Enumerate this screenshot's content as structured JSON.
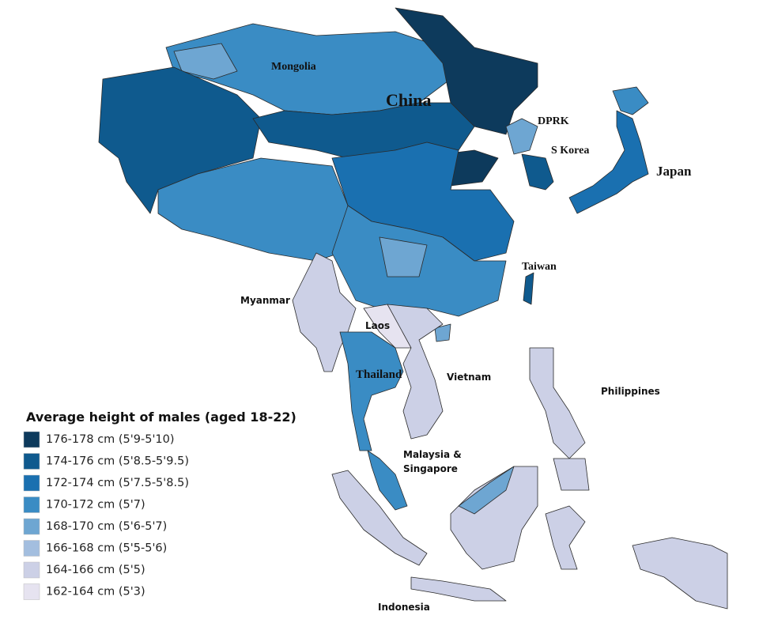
{
  "legend": {
    "title": "Average height of males (aged 18-22)",
    "items": [
      {
        "label": "176-178 cm (5'9-5'10)",
        "color": "#0d3a5c"
      },
      {
        "label": "174-176 cm (5'8.5-5'9.5)",
        "color": "#0f5a8e"
      },
      {
        "label": "172-174 cm (5'7.5-5'8.5)",
        "color": "#1a70b0"
      },
      {
        "label": "170-172 cm (5'7)",
        "color": "#3a8cc4"
      },
      {
        "label": "168-170 cm (5'6-5'7)",
        "color": "#6ea6d2"
      },
      {
        "label": "166-168 cm (5'5-5'6)",
        "color": "#a3bedf"
      },
      {
        "label": "164-166 cm (5'5)",
        "color": "#ccd0e6"
      },
      {
        "label": "162-164 cm (5'3)",
        "color": "#e6e3f0"
      }
    ]
  },
  "labels": [
    "Mongolia",
    "China",
    "DPRK",
    "S Korea",
    "Japan",
    "Taiwan",
    "Myanmar",
    "Laos",
    "Thailand",
    "Vietnam",
    "Philippines",
    "Malaysia &",
    "Singapore",
    "Indonesia"
  ]
}
